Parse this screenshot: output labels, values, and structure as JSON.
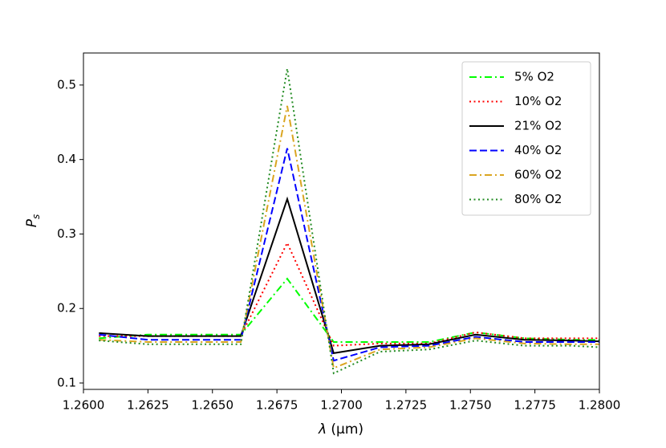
{
  "chart_data": {
    "type": "line",
    "xlabel": {
      "symbol": "λ",
      "unit": "(μm)"
    },
    "ylabel": {
      "main": "P",
      "sub": "s"
    },
    "x": [
      1.2606,
      1.2625,
      1.2643,
      1.2661,
      1.2679,
      1.2697,
      1.2715,
      1.2734,
      1.2752,
      1.2771,
      1.2789,
      1.28
    ],
    "series": [
      {
        "name": "5% O2",
        "color": "#00ff00",
        "linestyle": "dashdot",
        "values": [
          0.16,
          0.165,
          0.165,
          0.165,
          0.24,
          0.155,
          0.155,
          0.155,
          0.168,
          0.16,
          0.158,
          0.158
        ]
      },
      {
        "name": "10% O2",
        "color": "#ff0000",
        "linestyle": "dotted",
        "values": [
          0.163,
          0.163,
          0.163,
          0.163,
          0.288,
          0.15,
          0.153,
          0.153,
          0.168,
          0.16,
          0.16,
          0.16
        ]
      },
      {
        "name": "21% O2",
        "color": "#000000",
        "linestyle": "solid",
        "values": [
          0.167,
          0.163,
          0.163,
          0.163,
          0.347,
          0.14,
          0.15,
          0.152,
          0.165,
          0.158,
          0.157,
          0.156
        ]
      },
      {
        "name": "40% O2",
        "color": "#0000ff",
        "linestyle": "dashed",
        "values": [
          0.165,
          0.158,
          0.158,
          0.158,
          0.415,
          0.13,
          0.148,
          0.15,
          0.162,
          0.155,
          0.155,
          0.155
        ]
      },
      {
        "name": "60% O2",
        "color": "#daa520",
        "linestyle": "dashdot",
        "values": [
          0.158,
          0.155,
          0.155,
          0.155,
          0.472,
          0.12,
          0.145,
          0.148,
          0.16,
          0.153,
          0.152,
          0.152
        ]
      },
      {
        "name": "80% O2",
        "color": "#228b22",
        "linestyle": "dotted",
        "values": [
          0.157,
          0.152,
          0.152,
          0.152,
          0.522,
          0.113,
          0.142,
          0.145,
          0.157,
          0.15,
          0.15,
          0.148
        ]
      }
    ],
    "xlim": [
      1.26,
      1.28
    ],
    "xticks": [
      {
        "value": 1.26,
        "label": "1.2600"
      },
      {
        "value": 1.2625,
        "label": "1.2625"
      },
      {
        "value": 1.265,
        "label": "1.2650"
      },
      {
        "value": 1.2675,
        "label": "1.2675"
      },
      {
        "value": 1.27,
        "label": "1.2700"
      },
      {
        "value": 1.2725,
        "label": "1.2725"
      },
      {
        "value": 1.275,
        "label": "1.2750"
      },
      {
        "value": 1.2775,
        "label": "1.2775"
      },
      {
        "value": 1.28,
        "label": "1.2800"
      }
    ],
    "ylim": [
      0.0914,
      0.543
    ],
    "yticks": [
      0.1,
      0.2,
      0.3,
      0.4,
      0.5
    ],
    "legend": "upper right",
    "grid": false
  }
}
